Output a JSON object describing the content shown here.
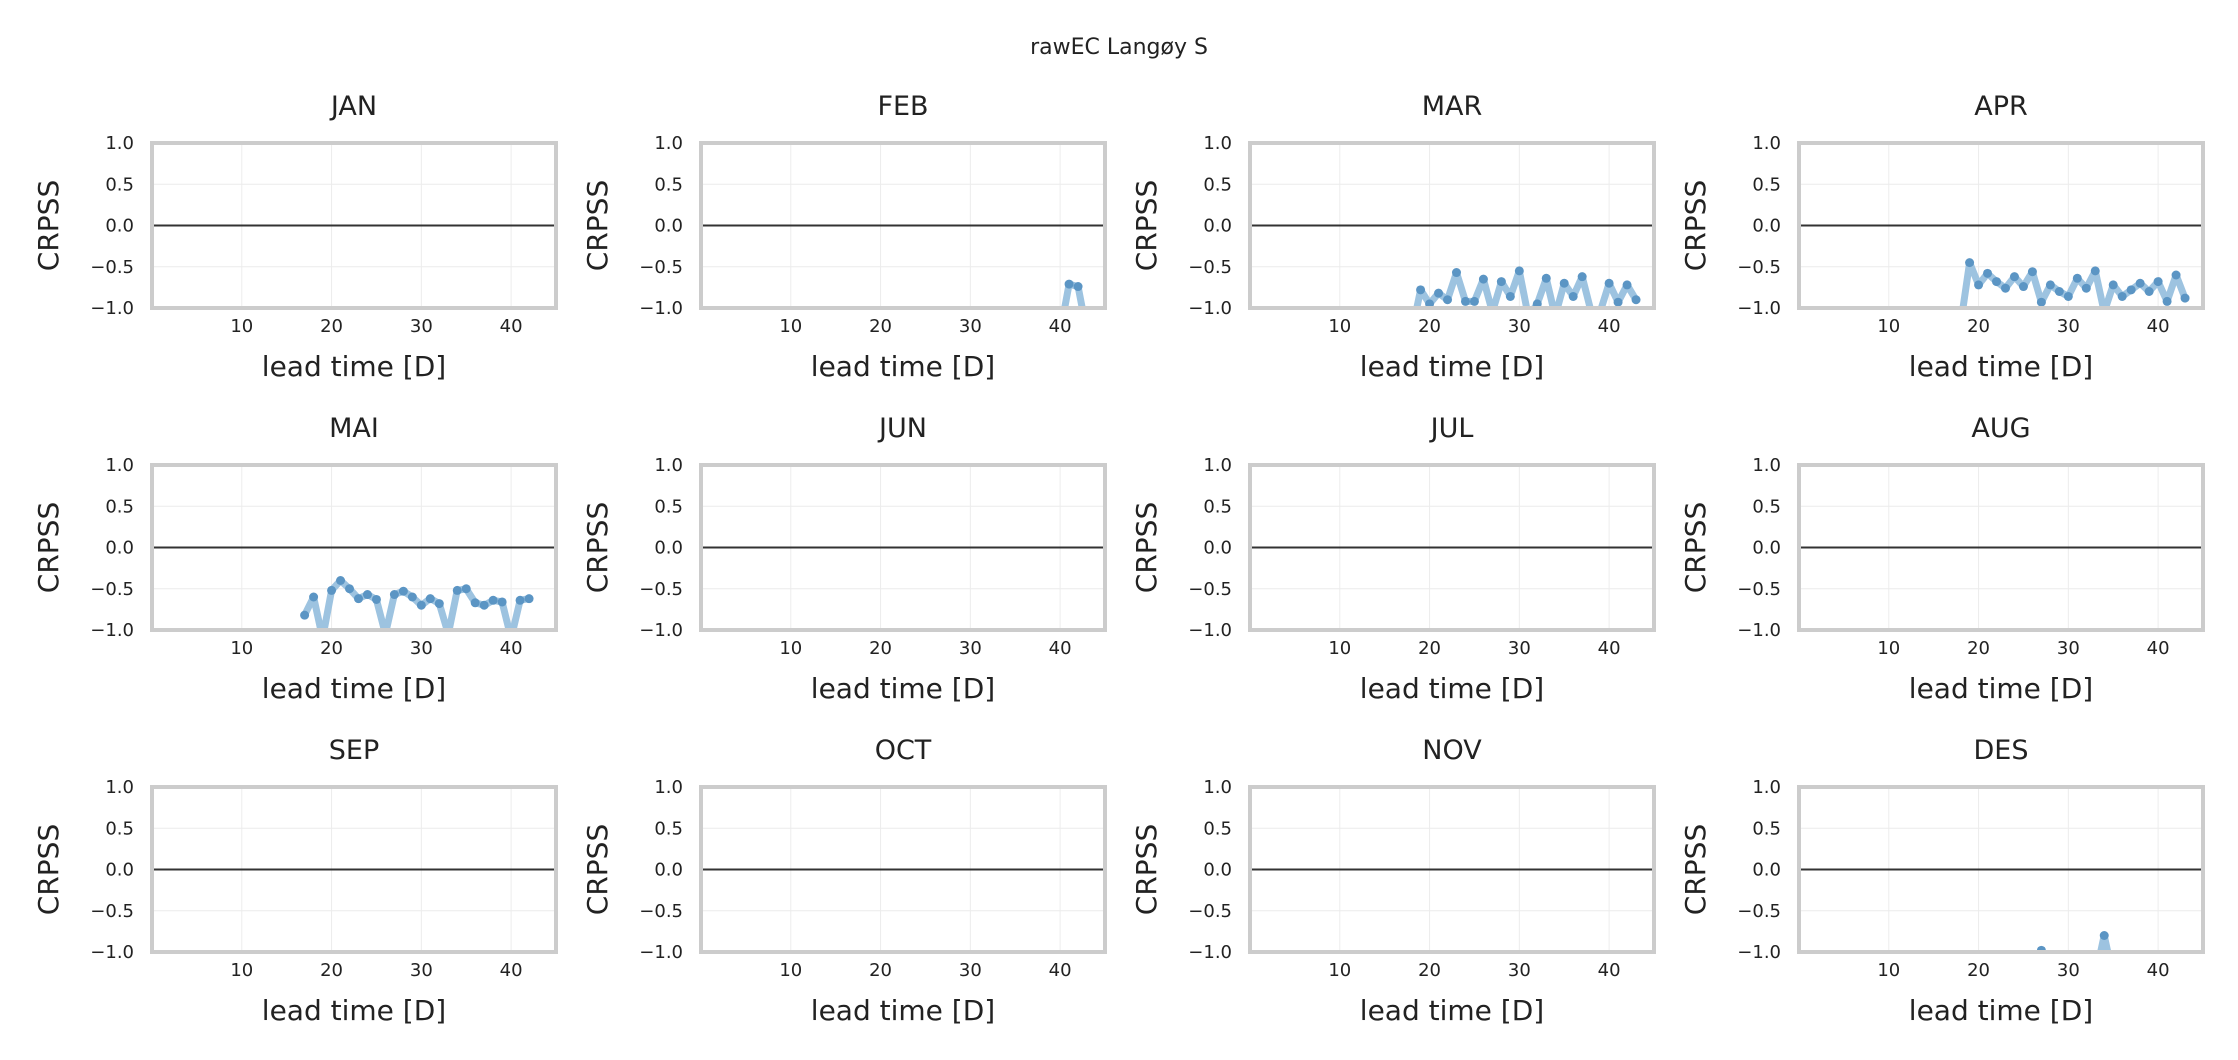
{
  "title": "rawEC Langøy S",
  "chart_data": [
    {
      "type": "line",
      "title": "JAN",
      "xlabel": "lead time [D]",
      "ylabel": "CRPSS",
      "xlim": [
        0,
        45
      ],
      "ylim": [
        -1,
        1
      ],
      "xticks": [
        10,
        20,
        30,
        40
      ],
      "yticks": [
        1.0,
        0.5,
        0.0,
        -0.5,
        -1.0
      ],
      "ytick_labels": [
        "1.0",
        "0.5",
        "0.0",
        "−0.5",
        "−1.0"
      ],
      "grid": true,
      "reference_line": 0,
      "x": [],
      "values": []
    },
    {
      "type": "line",
      "title": "FEB",
      "xlabel": "lead time [D]",
      "ylabel": "CRPSS",
      "xlim": [
        0,
        45
      ],
      "ylim": [
        -1,
        1
      ],
      "xticks": [
        10,
        20,
        30,
        40
      ],
      "yticks": [
        1.0,
        0.5,
        0.0,
        -0.5,
        -1.0
      ],
      "ytick_labels": [
        "1.0",
        "0.5",
        "0.0",
        "−0.5",
        "−1.0"
      ],
      "grid": true,
      "reference_line": 0,
      "x": [
        40,
        41,
        42,
        43
      ],
      "values": [
        -1.3,
        -0.71,
        -0.74,
        -1.3
      ]
    },
    {
      "type": "line",
      "title": "MAR",
      "xlabel": "lead time [D]",
      "ylabel": "CRPSS",
      "xlim": [
        0,
        45
      ],
      "ylim": [
        -1,
        1
      ],
      "xticks": [
        10,
        20,
        30,
        40
      ],
      "yticks": [
        1.0,
        0.5,
        0.0,
        -0.5,
        -1.0
      ],
      "ytick_labels": [
        "1.0",
        "0.5",
        "0.0",
        "−0.5",
        "−1.0"
      ],
      "grid": true,
      "reference_line": 0,
      "x": [
        18,
        19,
        20,
        21,
        22,
        23,
        24,
        25,
        26,
        27,
        28,
        29,
        30,
        31,
        32,
        33,
        34,
        35,
        36,
        37,
        38,
        39,
        40,
        41,
        42,
        43
      ],
      "values": [
        -1.3,
        -0.78,
        -0.95,
        -0.82,
        -0.9,
        -0.57,
        -0.92,
        -0.92,
        -0.65,
        -1.05,
        -0.68,
        -0.86,
        -0.55,
        -1.1,
        -0.95,
        -0.64,
        -1.1,
        -0.7,
        -0.86,
        -0.62,
        -1.05,
        -1.05,
        -0.7,
        -0.93,
        -0.72,
        -0.9
      ]
    },
    {
      "type": "line",
      "title": "APR",
      "xlabel": "lead time [D]",
      "ylabel": "CRPSS",
      "xlim": [
        0,
        45
      ],
      "ylim": [
        -1,
        1
      ],
      "xticks": [
        10,
        20,
        30,
        40
      ],
      "yticks": [
        1.0,
        0.5,
        0.0,
        -0.5,
        -1.0
      ],
      "ytick_labels": [
        "1.0",
        "0.5",
        "0.0",
        "−0.5",
        "−1.0"
      ],
      "grid": true,
      "reference_line": 0,
      "x": [
        18,
        19,
        20,
        21,
        22,
        23,
        24,
        25,
        26,
        27,
        28,
        29,
        30,
        31,
        32,
        33,
        34,
        35,
        36,
        37,
        38,
        39,
        40,
        41,
        42,
        43
      ],
      "values": [
        -1.2,
        -0.45,
        -0.72,
        -0.58,
        -0.68,
        -0.76,
        -0.62,
        -0.74,
        -0.56,
        -0.93,
        -0.72,
        -0.8,
        -0.86,
        -0.64,
        -0.76,
        -0.55,
        -1.05,
        -0.72,
        -0.86,
        -0.78,
        -0.7,
        -0.8,
        -0.68,
        -0.92,
        -0.6,
        -0.88
      ]
    },
    {
      "type": "line",
      "title": "MAI",
      "xlabel": "lead time [D]",
      "ylabel": "CRPSS",
      "xlim": [
        0,
        45
      ],
      "ylim": [
        -1,
        1
      ],
      "xticks": [
        10,
        20,
        30,
        40
      ],
      "yticks": [
        1.0,
        0.5,
        0.0,
        -0.5,
        -1.0
      ],
      "ytick_labels": [
        "1.0",
        "0.5",
        "0.0",
        "−0.5",
        "−1.0"
      ],
      "grid": true,
      "reference_line": 0,
      "x": [
        17,
        18,
        19,
        20,
        21,
        22,
        23,
        24,
        25,
        26,
        27,
        28,
        29,
        30,
        31,
        32,
        33,
        34,
        35,
        36,
        37,
        38,
        39,
        40,
        41,
        42,
        43
      ],
      "values": [
        -0.82,
        -0.6,
        -1.1,
        -0.52,
        -0.4,
        -0.5,
        -0.62,
        -0.57,
        -0.63,
        -1.05,
        -0.57,
        -0.53,
        -0.6,
        -0.7,
        -0.62,
        -0.68,
        -1.05,
        -0.52,
        -0.5,
        -0.67,
        -0.7,
        -0.64,
        -0.66,
        -1.1,
        -0.64,
        -0.62,
        null
      ]
    },
    {
      "type": "line",
      "title": "JUN",
      "xlabel": "lead time [D]",
      "ylabel": "CRPSS",
      "xlim": [
        0,
        45
      ],
      "ylim": [
        -1,
        1
      ],
      "xticks": [
        10,
        20,
        30,
        40
      ],
      "yticks": [
        1.0,
        0.5,
        0.0,
        -0.5,
        -1.0
      ],
      "ytick_labels": [
        "1.0",
        "0.5",
        "0.0",
        "−0.5",
        "−1.0"
      ],
      "grid": true,
      "reference_line": 0,
      "x": [],
      "values": []
    },
    {
      "type": "line",
      "title": "JUL",
      "xlabel": "lead time [D]",
      "ylabel": "CRPSS",
      "xlim": [
        0,
        45
      ],
      "ylim": [
        -1,
        1
      ],
      "xticks": [
        10,
        20,
        30,
        40
      ],
      "yticks": [
        1.0,
        0.5,
        0.0,
        -0.5,
        -1.0
      ],
      "ytick_labels": [
        "1.0",
        "0.5",
        "0.0",
        "−0.5",
        "−1.0"
      ],
      "grid": true,
      "reference_line": 0,
      "x": [],
      "values": []
    },
    {
      "type": "line",
      "title": "AUG",
      "xlabel": "lead time [D]",
      "ylabel": "CRPSS",
      "xlim": [
        0,
        45
      ],
      "ylim": [
        -1,
        1
      ],
      "xticks": [
        10,
        20,
        30,
        40
      ],
      "yticks": [
        1.0,
        0.5,
        0.0,
        -0.5,
        -1.0
      ],
      "ytick_labels": [
        "1.0",
        "0.5",
        "0.0",
        "−0.5",
        "−1.0"
      ],
      "grid": true,
      "reference_line": 0,
      "x": [],
      "values": []
    },
    {
      "type": "line",
      "title": "SEP",
      "xlabel": "lead time [D]",
      "ylabel": "CRPSS",
      "xlim": [
        0,
        45
      ],
      "ylim": [
        -1,
        1
      ],
      "xticks": [
        10,
        20,
        30,
        40
      ],
      "yticks": [
        1.0,
        0.5,
        0.0,
        -0.5,
        -1.0
      ],
      "ytick_labels": [
        "1.0",
        "0.5",
        "0.0",
        "−0.5",
        "−1.0"
      ],
      "grid": true,
      "reference_line": 0,
      "x": [],
      "values": []
    },
    {
      "type": "line",
      "title": "OCT",
      "xlabel": "lead time [D]",
      "ylabel": "CRPSS",
      "xlim": [
        0,
        45
      ],
      "ylim": [
        -1,
        1
      ],
      "xticks": [
        10,
        20,
        30,
        40
      ],
      "yticks": [
        1.0,
        0.5,
        0.0,
        -0.5,
        -1.0
      ],
      "ytick_labels": [
        "1.0",
        "0.5",
        "0.0",
        "−0.5",
        "−1.0"
      ],
      "grid": true,
      "reference_line": 0,
      "x": [],
      "values": []
    },
    {
      "type": "line",
      "title": "NOV",
      "xlabel": "lead time [D]",
      "ylabel": "CRPSS",
      "xlim": [
        0,
        45
      ],
      "ylim": [
        -1,
        1
      ],
      "xticks": [
        10,
        20,
        30,
        40
      ],
      "yticks": [
        1.0,
        0.5,
        0.0,
        -0.5,
        -1.0
      ],
      "ytick_labels": [
        "1.0",
        "0.5",
        "0.0",
        "−0.5",
        "−1.0"
      ],
      "grid": true,
      "reference_line": 0,
      "x": [],
      "values": []
    },
    {
      "type": "line",
      "title": "DES",
      "xlabel": "lead time [D]",
      "ylabel": "CRPSS",
      "xlim": [
        0,
        45
      ],
      "ylim": [
        -1,
        1
      ],
      "xticks": [
        10,
        20,
        30,
        40
      ],
      "yticks": [
        1.0,
        0.5,
        0.0,
        -0.5,
        -1.0
      ],
      "ytick_labels": [
        "1.0",
        "0.5",
        "0.0",
        "−0.5",
        "−1.0"
      ],
      "grid": true,
      "reference_line": 0,
      "x": [
        26,
        27,
        28,
        33,
        34,
        35
      ],
      "values": [
        -1.2,
        -0.98,
        -1.2,
        -1.3,
        -0.8,
        -1.3
      ]
    }
  ],
  "colors": {
    "line": "#9dc3e0",
    "marker": "#5b95c4",
    "reference": "#333333",
    "frame": "#cccccc",
    "grid": "#ececec"
  }
}
